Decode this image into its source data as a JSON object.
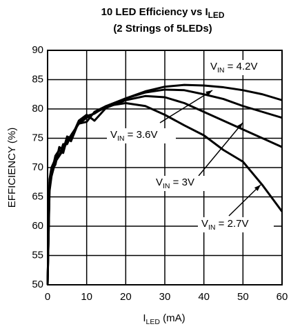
{
  "chart_data": {
    "type": "line",
    "title": {
      "text": "10 LED Efficiency vs I",
      "sub": "LED"
    },
    "subtitle": "(2 Strings of 5LEDs)",
    "x_label": {
      "text": "I",
      "sub": "LED",
      "rest": " (mA)"
    },
    "y_label": "EFFICIENCY (%)",
    "x": [
      0,
      0.5,
      1,
      2,
      3,
      4,
      5,
      6,
      8,
      10,
      12,
      15,
      20,
      25,
      30,
      35,
      40,
      45,
      50,
      55,
      60
    ],
    "series": [
      {
        "label": {
          "text": "V",
          "sub": "IN",
          "rest": " = 4.2V"
        },
        "color": "#000000",
        "values": [
          50,
          66,
          68.5,
          71,
          72,
          73,
          74.5,
          75.5,
          77.5,
          78.5,
          79.3,
          80.3,
          81.8,
          83,
          83.8,
          84.1,
          84,
          83.7,
          83.2,
          82.5,
          81.5
        ]
      },
      {
        "label": {
          "text": "V",
          "sub": "IN",
          "rest": " = 3.6V"
        },
        "color": "#000000",
        "values": [
          50,
          67,
          69,
          72,
          73,
          72.5,
          75,
          74.5,
          77.8,
          78.8,
          79.2,
          80.5,
          81.8,
          82.8,
          83.3,
          83.2,
          82.5,
          81.7,
          80.5,
          79.5,
          78.5
        ]
      },
      {
        "label": {
          "text": "V",
          "sub": "IN",
          "rest": " = 3V"
        },
        "color": "#000000",
        "values": [
          50,
          67.5,
          69.5,
          70.5,
          73.5,
          73,
          75.3,
          75,
          78,
          79,
          78,
          80.2,
          81.5,
          82.2,
          82,
          81,
          79.5,
          78,
          76.5,
          75,
          73.5
        ]
      },
      {
        "label": {
          "text": "V",
          "sub": "IN",
          "rest": " = 2.7V"
        },
        "color": "#000000",
        "values": [
          50,
          68,
          70,
          71.5,
          72,
          74,
          74,
          75.5,
          77.5,
          77.8,
          79.5,
          80.5,
          81,
          80.5,
          79,
          77.2,
          75.5,
          73,
          71,
          67,
          62.5
        ]
      }
    ],
    "xlim": [
      0,
      60
    ],
    "xticks": [
      0,
      10,
      20,
      30,
      40,
      50,
      60
    ],
    "ylim": [
      50,
      90
    ],
    "yticks": [
      50,
      55,
      60,
      65,
      70,
      75,
      80,
      85,
      90
    ],
    "grid": true
  }
}
